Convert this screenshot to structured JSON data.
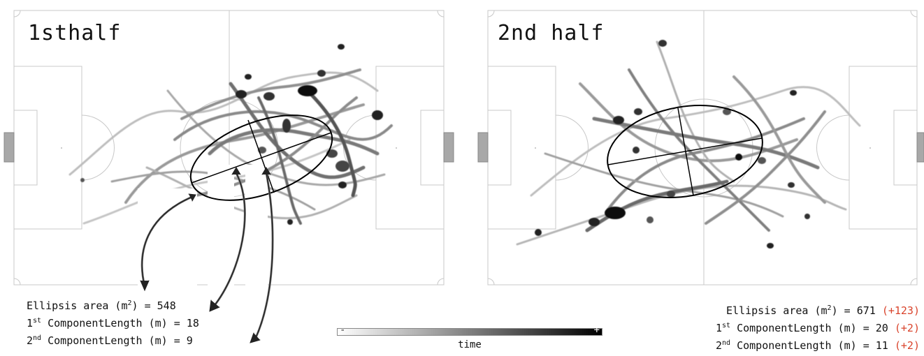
{
  "panels": [
    {
      "title": "1sthalf",
      "stats": {
        "area_label": "Ellipsis area (m",
        "area_unit_sup": "2",
        "area_suffix": ") = ",
        "area_value": "548",
        "area_delta": "",
        "c1_sup": "st",
        "c1_prefix": "1",
        "c1_label": " ComponentLength (m) = ",
        "c1_value": "18",
        "c1_delta": "",
        "c2_sup": "nd",
        "c2_prefix": "2",
        "c2_label": " ComponentLength (m) = ",
        "c2_value": "9",
        "c2_delta": ""
      }
    },
    {
      "title": "2nd half",
      "stats": {
        "area_label": "Ellipsis area (m",
        "area_unit_sup": "2",
        "area_suffix": ") = ",
        "area_value": "671",
        "area_delta": "(+123)",
        "c1_sup": "st",
        "c1_prefix": "1",
        "c1_label": " ComponentLength (m) = ",
        "c1_value": "20",
        "c1_delta": "(+2)",
        "c2_sup": "nd",
        "c2_prefix": "2",
        "c2_label": " ComponentLength (m) = ",
        "c2_value": "11",
        "c2_delta": "(+2)"
      }
    }
  ],
  "colorbar": {
    "min_symbol": "-",
    "max_symbol": "+",
    "label": "time"
  },
  "colors": {
    "pitch_line": "#c8c8c8",
    "goal_fill": "#a8a8a8",
    "ellipse": "#000000",
    "delta": "#d9432b"
  }
}
